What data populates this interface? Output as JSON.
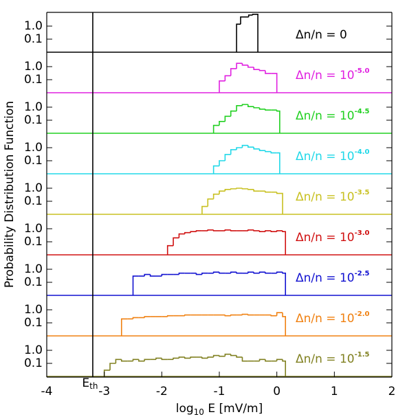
{
  "chart_data": {
    "type": "step",
    "log_y": true,
    "ylabel": "Probability Distribution Function",
    "xlabel": {
      "pre": "log",
      "sub": "10",
      "post": " E [mV/m]"
    },
    "xlim": [
      -4,
      2
    ],
    "xticks": [
      -4,
      -3,
      -2,
      -1,
      0,
      1,
      2
    ],
    "ylim": [
      0.01,
      10
    ],
    "yticks": [
      0.1,
      {
        "value": 1,
        "label": "1.0"
      }
    ],
    "threshold": {
      "value": -3.2,
      "label": "E",
      "label_sub": "th"
    },
    "series": [
      {
        "name": "Δn/n = 0",
        "color": "#000000",
        "bins": [
          -0.7,
          -0.63,
          -0.49,
          -0.42,
          -0.33
        ],
        "values": [
          1.4,
          5,
          7,
          8
        ]
      },
      {
        "name": "Δn/n = 10",
        "exponent": "-5.0",
        "color": "#e020e0",
        "bins": [
          -1.0,
          -0.9,
          -0.8,
          -0.7,
          -0.6,
          -0.5,
          -0.4,
          -0.3,
          -0.2,
          -0.1,
          0.0
        ],
        "values": [
          0.08,
          0.2,
          0.7,
          1.8,
          1.3,
          0.9,
          0.6,
          0.5,
          0.3,
          0.3
        ]
      },
      {
        "name": "Δn/n = 10",
        "exponent": "-4.5",
        "color": "#20d020",
        "bins": [
          -1.1,
          -1.0,
          -0.9,
          -0.8,
          -0.7,
          -0.6,
          -0.5,
          -0.4,
          -0.3,
          -0.2,
          -0.1,
          0.0,
          0.05
        ],
        "values": [
          0.04,
          0.08,
          0.2,
          0.5,
          1.3,
          1.6,
          1.1,
          0.9,
          0.7,
          0.6,
          0.6,
          0.5
        ]
      },
      {
        "name": "Δn/n = 10",
        "exponent": "-4.0",
        "color": "#20d8e8",
        "bins": [
          -1.1,
          -1.0,
          -0.9,
          -0.8,
          -0.7,
          -0.6,
          -0.5,
          -0.4,
          -0.3,
          -0.2,
          -0.1,
          0.0,
          0.05
        ],
        "values": [
          0.04,
          0.1,
          0.3,
          0.7,
          1.0,
          1.5,
          1.1,
          0.8,
          0.6,
          0.5,
          0.4,
          0.4
        ]
      },
      {
        "name": "Δn/n = 10",
        "exponent": "-3.5",
        "color": "#c8c020",
        "bins": [
          -1.3,
          -1.2,
          -1.1,
          -1.0,
          -0.9,
          -0.8,
          -0.7,
          -0.6,
          -0.5,
          -0.4,
          -0.3,
          -0.2,
          -0.1,
          0.0,
          0.1
        ],
        "values": [
          0.04,
          0.15,
          0.35,
          0.6,
          0.8,
          0.9,
          1.0,
          0.9,
          0.8,
          0.6,
          0.6,
          0.5,
          0.5,
          0.4
        ]
      },
      {
        "name": "Δn/n = 10",
        "exponent": "-3.0",
        "color": "#d01010",
        "bins": [
          -1.9,
          -1.8,
          -1.7,
          -1.6,
          -1.5,
          -1.4,
          -1.3,
          -1.2,
          -1.1,
          -1.0,
          -0.9,
          -0.8,
          -0.7,
          -0.6,
          -0.5,
          -0.4,
          -0.3,
          -0.2,
          -0.1,
          0.0,
          0.1,
          0.15
        ],
        "values": [
          0.05,
          0.2,
          0.4,
          0.5,
          0.6,
          0.7,
          0.7,
          0.8,
          0.7,
          0.7,
          0.8,
          0.7,
          0.7,
          0.7,
          0.8,
          0.7,
          0.6,
          0.7,
          0.6,
          0.7,
          0.6
        ]
      },
      {
        "name": "Δn/n = 10",
        "exponent": "-2.5",
        "color": "#1010d0",
        "bins": [
          -2.5,
          -2.4,
          -2.3,
          -2.2,
          -2.1,
          -2.0,
          -1.9,
          -1.8,
          -1.7,
          -1.6,
          -1.5,
          -1.4,
          -1.3,
          -1.2,
          -1.1,
          -1.0,
          -0.9,
          -0.8,
          -0.7,
          -0.6,
          -0.5,
          -0.4,
          -0.3,
          -0.2,
          -0.1,
          0.0,
          0.1,
          0.15
        ],
        "values": [
          0.3,
          0.3,
          0.4,
          0.3,
          0.3,
          0.4,
          0.4,
          0.4,
          0.5,
          0.5,
          0.5,
          0.4,
          0.5,
          0.5,
          0.6,
          0.5,
          0.5,
          0.6,
          0.5,
          0.5,
          0.6,
          0.5,
          0.6,
          0.5,
          0.5,
          0.6,
          0.5
        ]
      },
      {
        "name": "Δn/n = 10",
        "exponent": "-2.0",
        "color": "#f08010",
        "bins": [
          -2.7,
          -2.6,
          -2.5,
          -2.4,
          -2.3,
          -2.2,
          -2.1,
          -2.0,
          -1.9,
          -1.8,
          -1.7,
          -1.6,
          -1.5,
          -1.4,
          -1.3,
          -1.2,
          -1.1,
          -1.0,
          -0.9,
          -0.8,
          -0.7,
          -0.6,
          -0.5,
          -0.4,
          -0.3,
          -0.2,
          -0.1,
          0.0,
          0.1,
          0.15
        ],
        "values": [
          0.2,
          0.2,
          0.25,
          0.25,
          0.3,
          0.3,
          0.3,
          0.3,
          0.35,
          0.35,
          0.35,
          0.4,
          0.4,
          0.4,
          0.4,
          0.4,
          0.4,
          0.4,
          0.35,
          0.4,
          0.4,
          0.45,
          0.4,
          0.4,
          0.4,
          0.4,
          0.35,
          0.6,
          0.3
        ]
      },
      {
        "name": "Δn/n = 10",
        "exponent": "-1.5",
        "color": "#808020",
        "bins": [
          -3.0,
          -2.9,
          -2.8,
          -2.7,
          -2.6,
          -2.5,
          -2.4,
          -2.3,
          -2.2,
          -2.1,
          -2.0,
          -1.9,
          -1.8,
          -1.7,
          -1.6,
          -1.5,
          -1.4,
          -1.3,
          -1.2,
          -1.1,
          -1.0,
          -0.9,
          -0.8,
          -0.7,
          -0.6,
          -0.5,
          -0.4,
          -0.3,
          -0.2,
          -0.1,
          0.0,
          0.1,
          0.15
        ],
        "values": [
          0.03,
          0.1,
          0.2,
          0.15,
          0.15,
          0.2,
          0.15,
          0.2,
          0.2,
          0.25,
          0.2,
          0.2,
          0.25,
          0.3,
          0.25,
          0.3,
          0.3,
          0.25,
          0.3,
          0.4,
          0.35,
          0.5,
          0.4,
          0.3,
          0.15,
          0.15,
          0.15,
          0.2,
          0.15,
          0.15,
          0.2,
          0.15
        ]
      }
    ]
  }
}
